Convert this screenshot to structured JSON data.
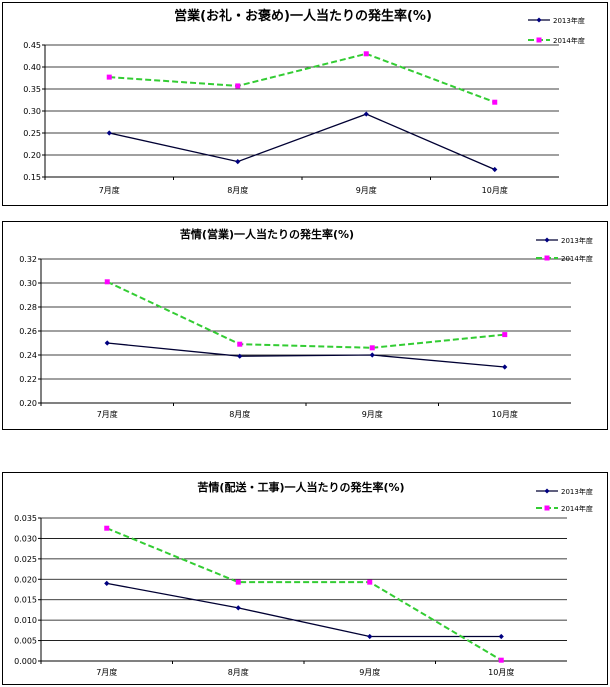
{
  "chart_data": [
    {
      "type": "line",
      "title": "営業(お礼・お褒め)一人当たりの発生率(%)",
      "categories": [
        "7月度",
        "8月度",
        "9月度",
        "10月度"
      ],
      "ylim": [
        0.15,
        0.45
      ],
      "yticks": [
        "0.45",
        "0.40",
        "0.35",
        "0.30",
        "0.25",
        "0.20",
        "0.15"
      ],
      "ytick_values": [
        0.45,
        0.4,
        0.35,
        0.3,
        0.25,
        0.2,
        0.15
      ],
      "legend_position": "top-right",
      "series": [
        {
          "name": "2013年度",
          "values": [
            0.25,
            0.185,
            0.293,
            0.167
          ],
          "color": "#000033",
          "marker_color": "#000080",
          "dashed": false,
          "marker": "diamond"
        },
        {
          "name": "2014年度",
          "values": [
            0.377,
            0.357,
            0.43,
            0.32
          ],
          "color": "#33cc33",
          "marker_color": "#ff00ff",
          "dashed": true,
          "marker": "square"
        }
      ]
    },
    {
      "type": "line",
      "title": "苦情(営業)一人当たりの発生率(%)",
      "categories": [
        "7月度",
        "8月度",
        "9月度",
        "10月度"
      ],
      "ylim": [
        0.2,
        0.32
      ],
      "yticks": [
        "0.32",
        "0.30",
        "0.28",
        "0.26",
        "0.24",
        "0.22",
        "0.20"
      ],
      "ytick_values": [
        0.32,
        0.3,
        0.28,
        0.26,
        0.24,
        0.22,
        0.2
      ],
      "legend_position": "top-right",
      "series": [
        {
          "name": "2013年度",
          "values": [
            0.25,
            0.239,
            0.24,
            0.23
          ],
          "color": "#000033",
          "marker_color": "#000080",
          "dashed": false,
          "marker": "diamond"
        },
        {
          "name": "2014年度",
          "values": [
            0.301,
            0.249,
            0.246,
            0.257
          ],
          "color": "#33cc33",
          "marker_color": "#ff00ff",
          "dashed": true,
          "marker": "square"
        }
      ]
    },
    {
      "type": "line",
      "title": "苦情(配送・工事)一人当たりの発生率(%)",
      "categories": [
        "7月度",
        "8月度",
        "9月度",
        "10月度"
      ],
      "ylim": [
        0,
        0.035
      ],
      "yticks": [
        "0.035",
        "0.030",
        "0.025",
        "0.020",
        "0.015",
        "0.010",
        "0.005",
        "0.000"
      ],
      "ytick_values": [
        0.035,
        0.03,
        0.025,
        0.02,
        0.015,
        0.01,
        0.005,
        0.0
      ],
      "legend_position": "top-right",
      "series": [
        {
          "name": "2013年度",
          "values": [
            0.019,
            0.013,
            0.006,
            0.006
          ],
          "color": "#000033",
          "marker_color": "#000080",
          "dashed": false,
          "marker": "diamond"
        },
        {
          "name": "2014年度",
          "values": [
            0.0325,
            0.0193,
            0.0193,
            0.0002
          ],
          "color": "#33cc33",
          "marker_color": "#ff00ff",
          "dashed": true,
          "marker": "square"
        }
      ]
    }
  ]
}
